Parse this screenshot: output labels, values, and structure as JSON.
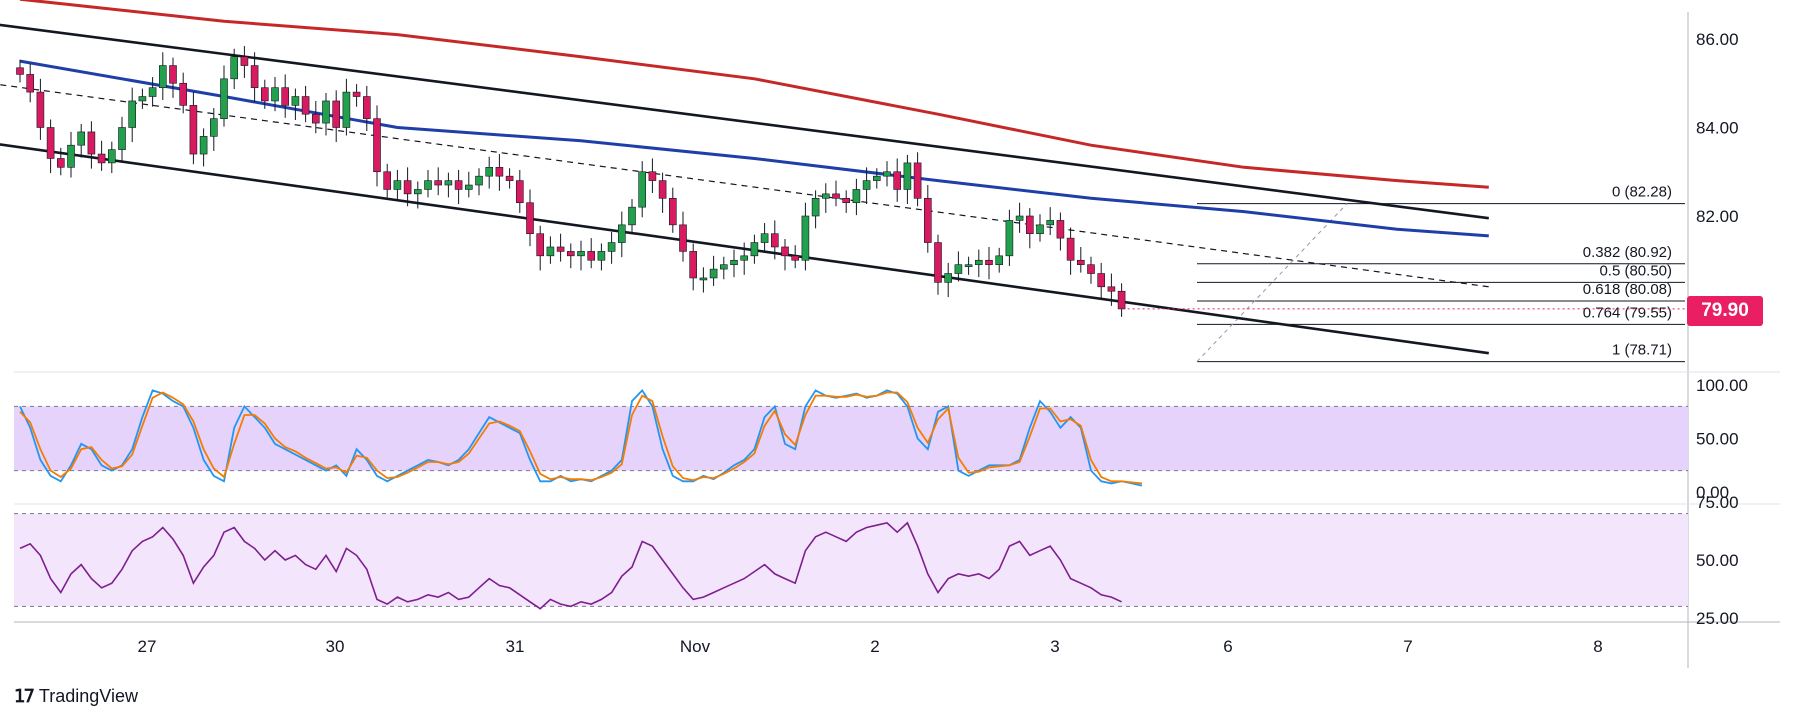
{
  "chart_data": {
    "type": "candlestick",
    "instrument_timeframe": "hourly",
    "x_ticks": [
      "27",
      "30",
      "31",
      "Nov",
      "2",
      "3",
      "6",
      "7",
      "8"
    ],
    "price_axis": {
      "ticks": [
        "86.00",
        "84.00",
        "82.00"
      ],
      "range": [
        78.0,
        86.6
      ]
    },
    "last_price": "79.90",
    "close_series": [
      85.2,
      84.8,
      84.0,
      83.3,
      83.1,
      83.6,
      83.9,
      83.4,
      83.2,
      83.5,
      84.0,
      84.6,
      84.7,
      84.9,
      85.4,
      85.0,
      84.5,
      83.4,
      83.8,
      84.2,
      85.1,
      85.6,
      85.4,
      84.9,
      84.6,
      84.9,
      84.5,
      84.7,
      84.3,
      84.1,
      84.6,
      84.0,
      84.8,
      84.7,
      84.2,
      83.0,
      82.6,
      82.8,
      82.5,
      82.6,
      82.8,
      82.7,
      82.8,
      82.6,
      82.7,
      82.9,
      83.1,
      82.9,
      82.8,
      82.3,
      81.6,
      81.1,
      81.3,
      81.2,
      81.1,
      81.2,
      81.0,
      81.2,
      81.4,
      81.8,
      82.2,
      83.0,
      82.8,
      82.4,
      81.8,
      81.2,
      80.6,
      80.6,
      80.8,
      80.9,
      81.0,
      81.1,
      81.4,
      81.6,
      81.3,
      81.1,
      81.0,
      82.0,
      82.4,
      82.5,
      82.4,
      82.3,
      82.6,
      82.8,
      82.9,
      83.0,
      82.6,
      83.2,
      82.4,
      81.4,
      80.5,
      80.7,
      80.9,
      80.9,
      81.0,
      80.9,
      81.1,
      81.9,
      82.0,
      81.6,
      81.8,
      81.9,
      81.5,
      81.0,
      80.9,
      80.7,
      80.4,
      80.3,
      79.9
    ],
    "moving_averages": [
      {
        "color": "#1f3fa8",
        "points": [
          [
            0,
            85.5
          ],
          [
            20,
            84.7
          ],
          [
            37,
            84.0
          ],
          [
            55,
            83.7
          ],
          [
            72,
            83.3
          ],
          [
            90,
            82.8
          ],
          [
            105,
            82.4
          ],
          [
            120,
            82.1
          ],
          [
            135,
            81.7
          ],
          [
            144,
            81.55
          ]
        ]
      },
      {
        "color": "#c62828",
        "points": [
          [
            0,
            86.9
          ],
          [
            20,
            86.4
          ],
          [
            37,
            86.1
          ],
          [
            55,
            85.6
          ],
          [
            72,
            85.1
          ],
          [
            90,
            84.3
          ],
          [
            105,
            83.6
          ],
          [
            120,
            83.1
          ],
          [
            135,
            82.8
          ],
          [
            144,
            82.65
          ]
        ]
      }
    ],
    "channel": {
      "upper": [
        [
          -3,
          86.35
        ],
        [
          144,
          81.95
        ]
      ],
      "lower": [
        [
          -3,
          83.65
        ],
        [
          144,
          78.9
        ]
      ],
      "mid": [
        [
          -3,
          85.0
        ],
        [
          144,
          80.4
        ]
      ]
    },
    "fibonacci": [
      {
        "label": "0 (82.28)",
        "price": 82.28
      },
      {
        "label": "0.382 (80.92)",
        "price": 80.92
      },
      {
        "label": "0.5 (80.50)",
        "price": 80.5
      },
      {
        "label": "0.618 (80.08)",
        "price": 80.08
      },
      {
        "label": "0.764 (79.55)",
        "price": 79.55
      },
      {
        "label": "1 (78.71)",
        "price": 78.71
      }
    ],
    "stoch_rsi": {
      "ticks": [
        "100.00",
        "50.00",
        "0.00"
      ],
      "range": [
        0,
        100
      ],
      "upper_band": 80,
      "lower_band": 20,
      "k": [
        80,
        60,
        30,
        15,
        10,
        25,
        45,
        40,
        25,
        20,
        25,
        40,
        70,
        95,
        92,
        85,
        80,
        60,
        30,
        15,
        10,
        60,
        80,
        70,
        60,
        45,
        40,
        35,
        30,
        25,
        20,
        25,
        15,
        40,
        30,
        15,
        10,
        15,
        20,
        25,
        30,
        28,
        25,
        30,
        40,
        55,
        70,
        65,
        60,
        55,
        30,
        10,
        10,
        15,
        10,
        12,
        10,
        15,
        20,
        30,
        85,
        95,
        80,
        40,
        15,
        10,
        10,
        15,
        12,
        18,
        25,
        30,
        40,
        70,
        80,
        45,
        40,
        80,
        95,
        90,
        88,
        90,
        92,
        88,
        90,
        95,
        92,
        80,
        50,
        40,
        75,
        80,
        20,
        15,
        20,
        25,
        25,
        25,
        30,
        60,
        85,
        75,
        60,
        70,
        60,
        20,
        10,
        8,
        10,
        8,
        6
      ],
      "d": [
        75,
        65,
        40,
        20,
        14,
        22,
        40,
        42,
        30,
        22,
        24,
        35,
        62,
        88,
        93,
        88,
        82,
        66,
        40,
        22,
        14,
        45,
        72,
        72,
        64,
        50,
        42,
        38,
        32,
        27,
        22,
        23,
        18,
        34,
        32,
        20,
        13,
        14,
        18,
        23,
        28,
        28,
        26,
        28,
        36,
        50,
        64,
        66,
        62,
        57,
        38,
        17,
        12,
        14,
        12,
        12,
        11,
        14,
        18,
        26,
        72,
        90,
        85,
        52,
        24,
        13,
        11,
        14,
        13,
        17,
        22,
        28,
        36,
        62,
        76,
        54,
        44,
        72,
        90,
        90,
        89,
        89,
        91,
        89,
        90,
        93,
        93,
        84,
        60,
        46,
        68,
        78,
        32,
        18,
        19,
        23,
        24,
        25,
        28,
        52,
        78,
        78,
        66,
        68,
        62,
        30,
        14,
        10,
        10,
        9,
        8
      ]
    },
    "rsi": {
      "ticks": [
        "75.00",
        "50.00",
        "25.00"
      ],
      "range": [
        25,
        75
      ],
      "upper_band": 70,
      "lower_band": 30,
      "values": [
        55,
        57,
        52,
        42,
        36,
        44,
        48,
        42,
        38,
        40,
        46,
        54,
        58,
        60,
        64,
        59,
        52,
        40,
        47,
        52,
        62,
        64,
        58,
        55,
        50,
        54,
        50,
        52,
        48,
        46,
        52,
        45,
        55,
        52,
        46,
        33,
        31,
        34,
        32,
        33,
        35,
        34,
        36,
        33,
        34,
        38,
        42,
        39,
        38,
        35,
        32,
        29,
        33,
        31,
        30,
        32,
        31,
        33,
        36,
        43,
        47,
        58,
        56,
        50,
        44,
        38,
        33,
        34,
        36,
        38,
        40,
        42,
        45,
        48,
        44,
        42,
        40,
        54,
        60,
        62,
        60,
        58,
        62,
        64,
        65,
        66,
        62,
        66,
        56,
        44,
        36,
        42,
        44,
        43,
        44,
        42,
        46,
        56,
        58,
        52,
        54,
        56,
        50,
        42,
        40,
        38,
        35,
        34,
        32
      ]
    }
  },
  "brand": {
    "name": "TradingView"
  }
}
